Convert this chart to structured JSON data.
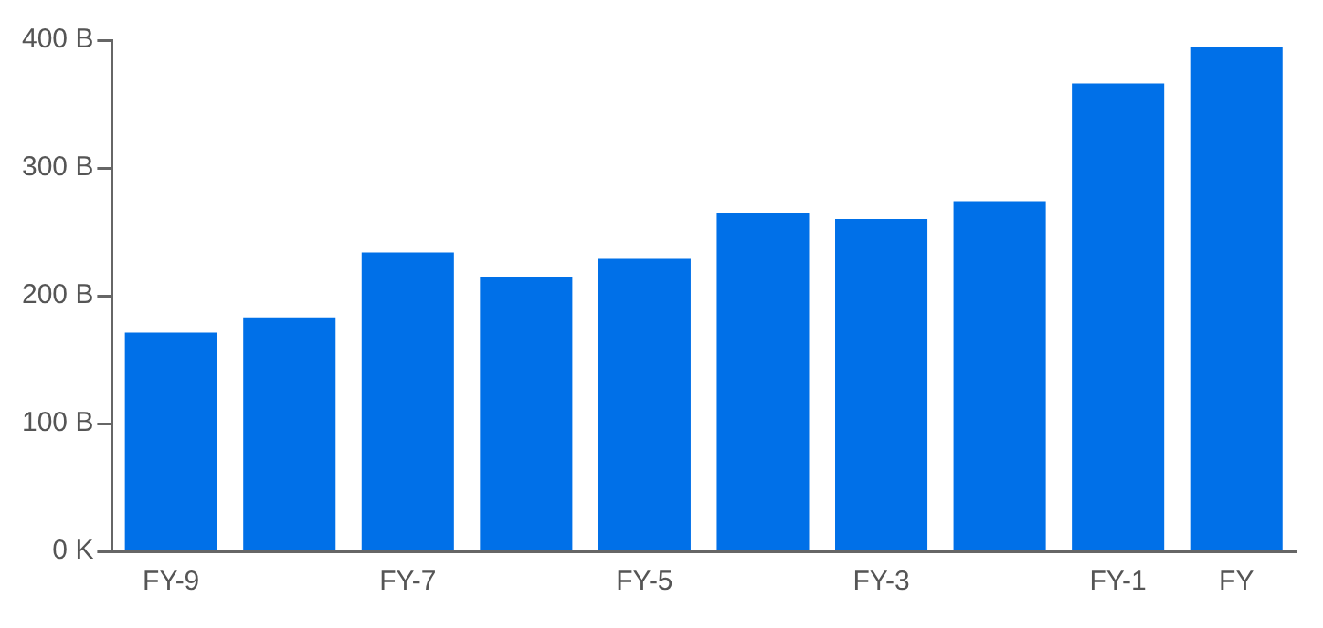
{
  "chart_data": {
    "type": "bar",
    "categories": [
      "FY-9",
      null,
      "FY-7",
      null,
      "FY-5",
      null,
      "FY-3",
      null,
      "FY-1",
      "FY"
    ],
    "values": [
      171,
      183,
      234,
      215,
      229,
      265,
      260,
      274,
      366,
      395
    ],
    "color": "#0070e8",
    "ylim": [
      0,
      400
    ],
    "yticks": [
      {
        "value": 0,
        "label": "0 K"
      },
      {
        "value": 100,
        "label": "100 B"
      },
      {
        "value": 200,
        "label": "200 B"
      },
      {
        "value": 300,
        "label": "300 B"
      },
      {
        "value": 400,
        "label": "400 B"
      }
    ],
    "grid": false,
    "legend": false
  }
}
